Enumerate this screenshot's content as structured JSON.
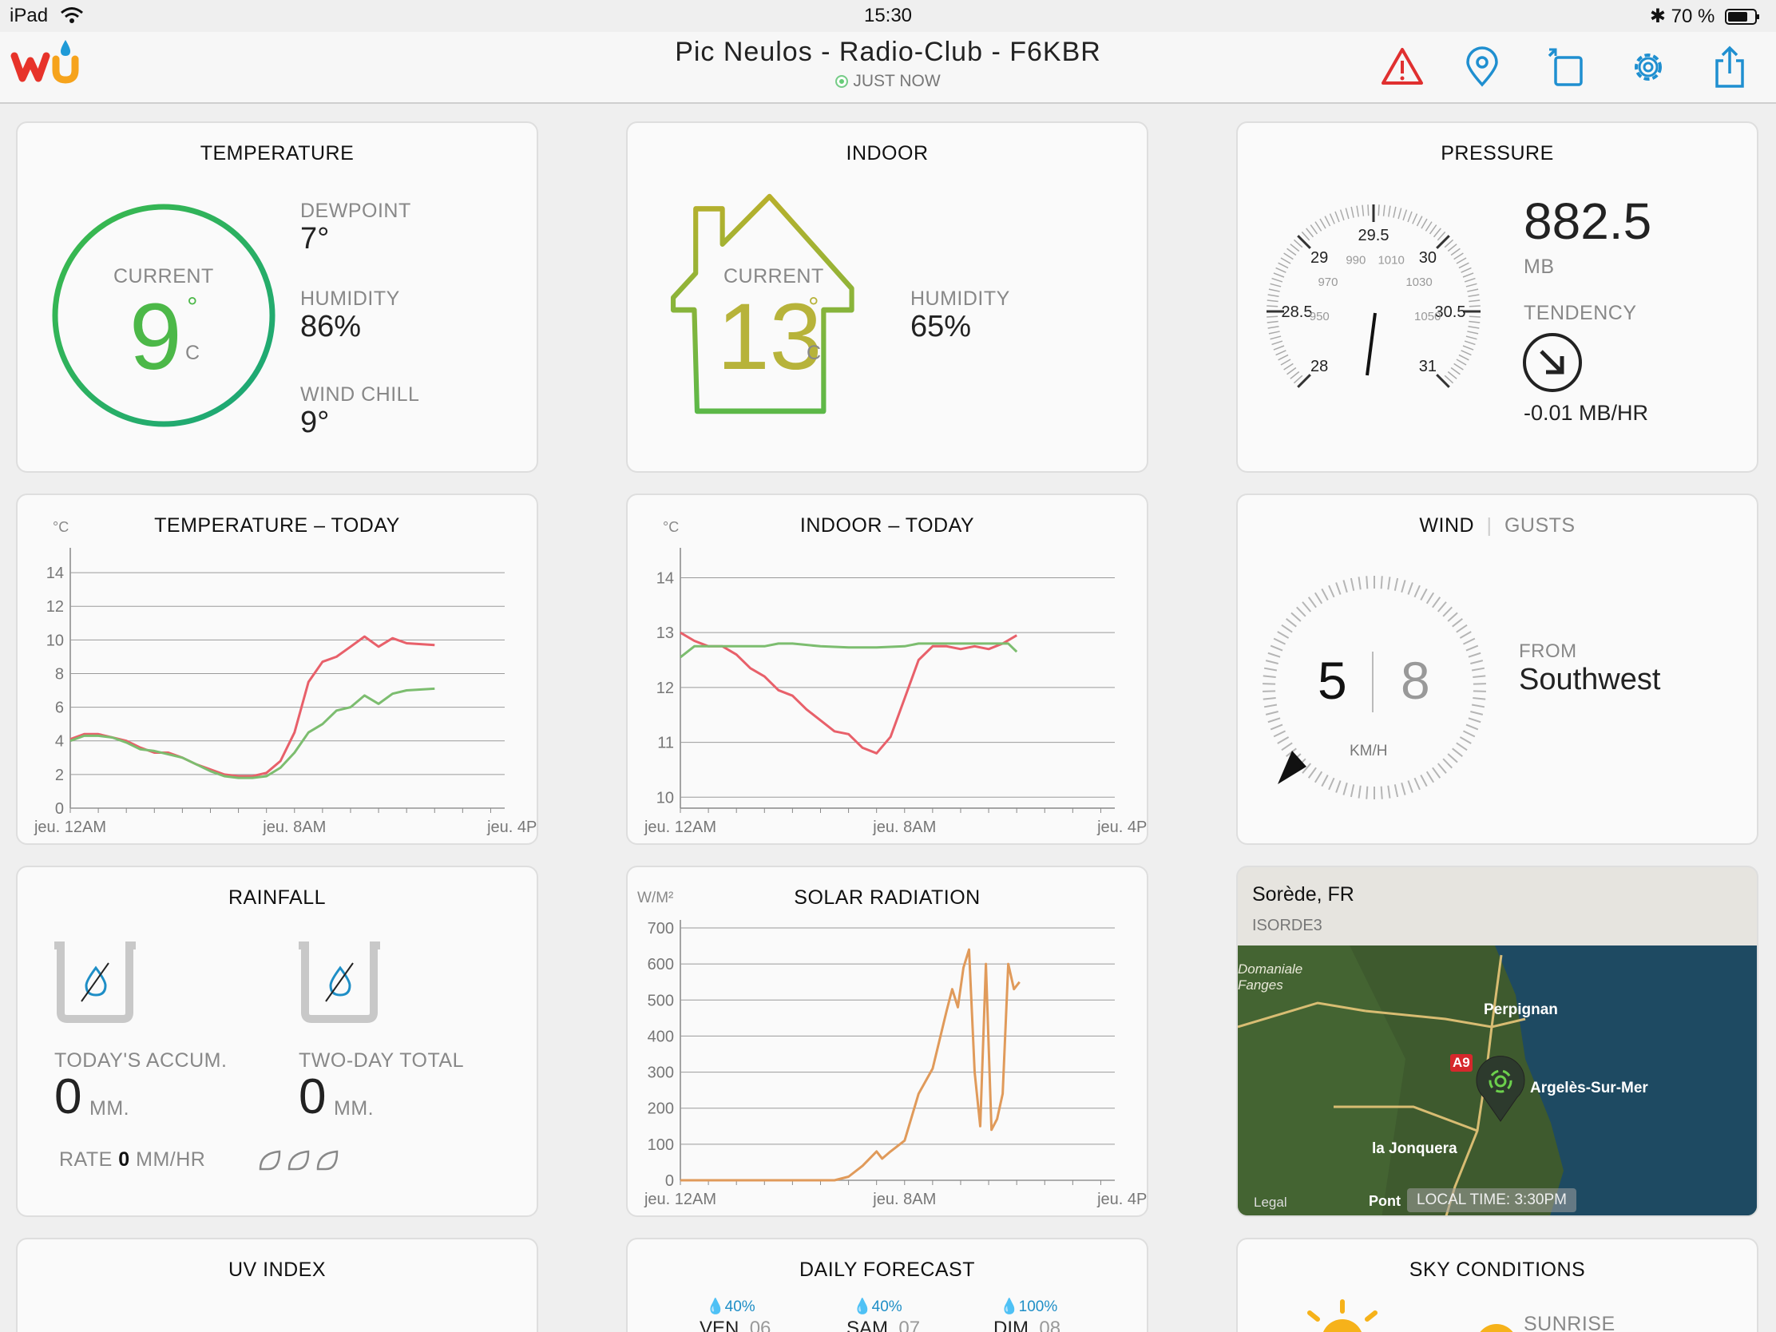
{
  "status": {
    "device": "iPad",
    "time": "15:30",
    "battery": "70 %"
  },
  "header": {
    "title": "Pic Neulos - Radio-Club - F6KBR",
    "updated": "JUST NOW"
  },
  "temperature": {
    "title": "TEMPERATURE",
    "current_label": "CURRENT",
    "value": "9",
    "unit": "C",
    "dewpoint_label": "DEWPOINT",
    "dewpoint": "7°",
    "humidity_label": "HUMIDITY",
    "humidity": "86%",
    "windchill_label": "WIND CHILL",
    "windchill": "9°"
  },
  "indoor": {
    "title": "INDOOR",
    "current_label": "CURRENT",
    "value": "13",
    "unit": "C",
    "humidity_label": "HUMIDITY",
    "humidity": "65%"
  },
  "pressure": {
    "title": "PRESSURE",
    "value": "882.5",
    "unit": "MB",
    "tendency_label": "TENDENCY",
    "tendency": "-0.01 MB/HR",
    "gauge_inhg": [
      "28",
      "28.5",
      "29",
      "29.5",
      "30",
      "30.5",
      "31"
    ],
    "gauge_mb": [
      "950",
      "970",
      "990",
      "1010",
      "1030",
      "1050"
    ]
  },
  "wind": {
    "title": "WIND",
    "gusts_label": "GUSTS",
    "speed": "5",
    "gust": "8",
    "unit": "KM/H",
    "from_label": "FROM",
    "direction": "Southwest"
  },
  "rainfall": {
    "title": "RAINFALL",
    "today_label": "TODAY'S ACCUM.",
    "today": "0",
    "two_day_label": "TWO-DAY TOTAL",
    "two_day": "0",
    "unit": "MM.",
    "rate_label": "RATE",
    "rate": "0",
    "rate_unit": "MM/HR"
  },
  "map": {
    "location": "Sorède, FR",
    "station": "ISORDE3",
    "local_time": "LOCAL TIME: 3:30PM",
    "legal": "Legal",
    "places": [
      "Perpignan",
      "Argelès-Sur-Mer",
      "la Jonquera",
      "Pont",
      "A9",
      "Domaniale Fanges"
    ],
    "colors": {
      "sea": "#1e4a62",
      "land": "#3e5a2e"
    }
  },
  "bottom": {
    "uv_title": "UV INDEX",
    "forecast_title": "DAILY FORECAST",
    "sky_title": "SKY CONDITIONS",
    "sunrise_label": "SUNRISE",
    "forecast": [
      {
        "pop": "40%",
        "day": "VEN.",
        "date": "06"
      },
      {
        "pop": "40%",
        "day": "SAM.",
        "date": "07"
      },
      {
        "pop": "100%",
        "day": "DIM.",
        "date": "08"
      }
    ]
  },
  "chart_data": [
    {
      "type": "line",
      "title": "TEMPERATURE – TODAY",
      "unit": "°C",
      "ylim": [
        0,
        15
      ],
      "yticks": [
        0,
        2,
        4,
        6,
        8,
        10,
        12,
        14
      ],
      "xticks": [
        "jeu. 12AM",
        "jeu. 8AM",
        "jeu. 4PM"
      ],
      "series": [
        {
          "color": "#e8606a",
          "points": [
            [
              0,
              4.1
            ],
            [
              0.5,
              4.4
            ],
            [
              1,
              4.4
            ],
            [
              1.5,
              4.2
            ],
            [
              2,
              4.0
            ],
            [
              2.5,
              3.6
            ],
            [
              3,
              3.3
            ],
            [
              3.5,
              3.3
            ],
            [
              4,
              3.0
            ],
            [
              4.5,
              2.6
            ],
            [
              5,
              2.3
            ],
            [
              5.5,
              2.0
            ],
            [
              6,
              1.9
            ],
            [
              6.5,
              1.9
            ],
            [
              7,
              2.1
            ],
            [
              7.5,
              2.8
            ],
            [
              8,
              4.5
            ],
            [
              8.5,
              7.5
            ],
            [
              9,
              8.7
            ],
            [
              9.5,
              9.0
            ],
            [
              10,
              9.6
            ],
            [
              10.5,
              10.2
            ],
            [
              11,
              9.6
            ],
            [
              11.5,
              10.1
            ],
            [
              12,
              9.8
            ],
            [
              13,
              9.7
            ]
          ]
        },
        {
          "color": "#7cbd6f",
          "points": [
            [
              0,
              4.0
            ],
            [
              0.5,
              4.3
            ],
            [
              1,
              4.3
            ],
            [
              1.5,
              4.2
            ],
            [
              2,
              3.9
            ],
            [
              2.5,
              3.5
            ],
            [
              3,
              3.4
            ],
            [
              3.5,
              3.2
            ],
            [
              4,
              3.0
            ],
            [
              4.5,
              2.6
            ],
            [
              5,
              2.2
            ],
            [
              5.5,
              1.9
            ],
            [
              6,
              1.8
            ],
            [
              6.5,
              1.8
            ],
            [
              7,
              1.9
            ],
            [
              7.5,
              2.4
            ],
            [
              8,
              3.3
            ],
            [
              8.5,
              4.5
            ],
            [
              9,
              5.0
            ],
            [
              9.5,
              5.8
            ],
            [
              10,
              6.0
            ],
            [
              10.5,
              6.7
            ],
            [
              11,
              6.2
            ],
            [
              11.5,
              6.8
            ],
            [
              12,
              7.0
            ],
            [
              13,
              7.1
            ]
          ]
        }
      ]
    },
    {
      "type": "line",
      "title": "INDOOR – TODAY",
      "unit": "°C",
      "ylim": [
        9.8,
        14.4
      ],
      "yticks": [
        10,
        11,
        12,
        13,
        14
      ],
      "xticks": [
        "jeu. 12AM",
        "jeu. 8AM",
        "jeu. 4PM"
      ],
      "series": [
        {
          "color": "#e8606a",
          "points": [
            [
              0,
              13.0
            ],
            [
              0.5,
              12.85
            ],
            [
              1,
              12.75
            ],
            [
              1.5,
              12.75
            ],
            [
              2,
              12.6
            ],
            [
              2.5,
              12.35
            ],
            [
              3,
              12.2
            ],
            [
              3.5,
              11.95
            ],
            [
              4,
              11.85
            ],
            [
              4.5,
              11.6
            ],
            [
              5,
              11.4
            ],
            [
              5.5,
              11.2
            ],
            [
              6,
              11.15
            ],
            [
              6.5,
              10.9
            ],
            [
              7,
              10.8
            ],
            [
              7.5,
              11.1
            ],
            [
              8,
              11.8
            ],
            [
              8.5,
              12.5
            ],
            [
              9,
              12.75
            ],
            [
              9.5,
              12.75
            ],
            [
              10,
              12.7
            ],
            [
              10.5,
              12.75
            ],
            [
              11,
              12.7
            ],
            [
              11.5,
              12.8
            ],
            [
              12,
              12.95
            ]
          ]
        },
        {
          "color": "#7cbd6f",
          "points": [
            [
              0,
              12.55
            ],
            [
              0.5,
              12.75
            ],
            [
              1,
              12.75
            ],
            [
              2,
              12.75
            ],
            [
              3,
              12.75
            ],
            [
              3.5,
              12.8
            ],
            [
              4,
              12.8
            ],
            [
              5,
              12.75
            ],
            [
              6,
              12.73
            ],
            [
              7,
              12.73
            ],
            [
              8,
              12.75
            ],
            [
              8.5,
              12.8
            ],
            [
              9,
              12.8
            ],
            [
              10,
              12.8
            ],
            [
              11,
              12.8
            ],
            [
              11.7,
              12.8
            ],
            [
              12,
              12.65
            ]
          ]
        }
      ]
    },
    {
      "type": "line",
      "title": "SOLAR RADIATION",
      "unit": "W/M²",
      "ylim": [
        0,
        700
      ],
      "yticks": [
        0,
        100,
        200,
        300,
        400,
        500,
        600,
        700
      ],
      "xticks": [
        "jeu. 12AM",
        "jeu. 8AM",
        "jeu. 4PM"
      ],
      "series": [
        {
          "color": "#e09a5a",
          "points": [
            [
              0,
              0
            ],
            [
              5.5,
              0
            ],
            [
              6,
              10
            ],
            [
              6.5,
              40
            ],
            [
              7,
              80
            ],
            [
              7.2,
              60
            ],
            [
              7.5,
              80
            ],
            [
              8,
              110
            ],
            [
              8.5,
              240
            ],
            [
              9,
              310
            ],
            [
              9.5,
              470
            ],
            [
              9.7,
              530
            ],
            [
              9.9,
              480
            ],
            [
              10.1,
              590
            ],
            [
              10.3,
              640
            ],
            [
              10.5,
              300
            ],
            [
              10.7,
              150
            ],
            [
              10.9,
              600
            ],
            [
              11.1,
              140
            ],
            [
              11.3,
              170
            ],
            [
              11.5,
              240
            ],
            [
              11.7,
              600
            ],
            [
              11.9,
              530
            ],
            [
              12.1,
              550
            ]
          ]
        }
      ]
    }
  ]
}
